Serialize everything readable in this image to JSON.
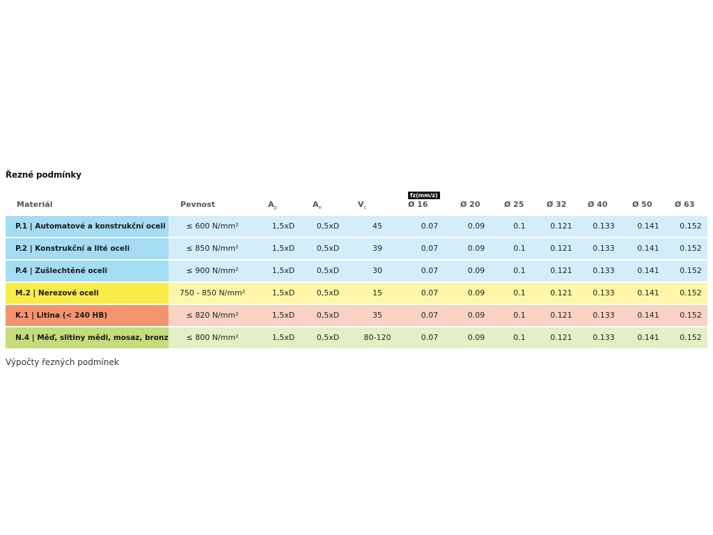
{
  "section_title": "Řezné podmínky",
  "fz_badge": "fz(mm/z)",
  "headers": {
    "material": "Materiál",
    "pevnost": "Pevnost",
    "ap_main": "A",
    "ap_sub": "p",
    "ae_main": "A",
    "ae_sub": "e",
    "vc_main": "V",
    "vc_sub": "c",
    "d16": "Ø 16",
    "d20": "Ø 20",
    "d25": "Ø 25",
    "d32": "Ø 32",
    "d40": "Ø 40",
    "d50": "Ø 50",
    "d63": "Ø 63"
  },
  "rows": [
    {
      "material": "P.1 | Automatové a konstrukční oceli",
      "pevnost": "≤ 600 N/mm²",
      "ap": "1,5xD",
      "ae": "0,5xD",
      "vc": "45",
      "d16": "0.07",
      "d20": "0.09",
      "d25": "0.1",
      "d32": "0.121",
      "d40": "0.133",
      "d50": "0.141",
      "d63": "0.152",
      "name_color": "#a3dcf3",
      "row_color": "#d3eef9"
    },
    {
      "material": "P.2 | Konstrukční a lité oceli",
      "pevnost": "≤ 850 N/mm²",
      "ap": "1,5xD",
      "ae": "0,5xD",
      "vc": "39",
      "d16": "0.07",
      "d20": "0.09",
      "d25": "0.1",
      "d32": "0.121",
      "d40": "0.133",
      "d50": "0.141",
      "d63": "0.152",
      "name_color": "#a3dcf3",
      "row_color": "#d3eef9"
    },
    {
      "material": "P.4 | Zušlechtěné oceli",
      "pevnost": "≤ 900 N/mm²",
      "ap": "1,5xD",
      "ae": "0,5xD",
      "vc": "30",
      "d16": "0.07",
      "d20": "0.09",
      "d25": "0.1",
      "d32": "0.121",
      "d40": "0.133",
      "d50": "0.141",
      "d63": "0.152",
      "name_color": "#a3dcf3",
      "row_color": "#d3eef9"
    },
    {
      "material": "M.2 | Nerezové oceli",
      "pevnost": "750 - 850 N/mm²",
      "ap": "1,5xD",
      "ae": "0,5xD",
      "vc": "15",
      "d16": "0.07",
      "d20": "0.09",
      "d25": "0.1",
      "d32": "0.121",
      "d40": "0.133",
      "d50": "0.141",
      "d63": "0.152",
      "name_color": "#f8ec4a",
      "row_color": "#fbf6a8"
    },
    {
      "material": "K.1 | Litina (< 240 HB)",
      "pevnost": "≤ 820 N/mm²",
      "ap": "1,5xD",
      "ae": "0,5xD",
      "vc": "35",
      "d16": "0.07",
      "d20": "0.09",
      "d25": "0.1",
      "d32": "0.121",
      "d40": "0.133",
      "d50": "0.141",
      "d63": "0.152",
      "name_color": "#f4946e",
      "row_color": "#f8d2c3"
    },
    {
      "material": "N.4 | Měď, slitiny mědi, mosaz, bronz",
      "pevnost": "≤ 800 N/mm²",
      "ap": "1,5xD",
      "ae": "0,5xD",
      "vc": "80-120",
      "d16": "0.07",
      "d20": "0.09",
      "d25": "0.1",
      "d32": "0.121",
      "d40": "0.133",
      "d50": "0.141",
      "d63": "0.152",
      "name_color": "#c4dc7a",
      "row_color": "#e5efc6"
    }
  ],
  "footer_text": "Výpočty řezných podmínek"
}
